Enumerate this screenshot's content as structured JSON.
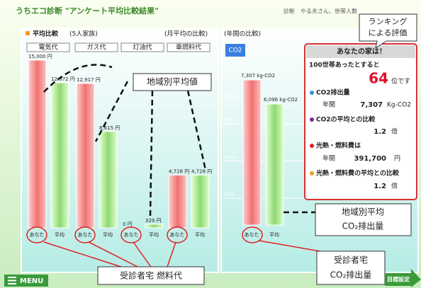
{
  "header": {
    "title": "うちエコ診断 \"アンケート平均比較結果\"",
    "user": "診断　やる夫さん、世帯人数"
  },
  "cost_panel": {
    "label": "平均比較",
    "household": "(5人家族)",
    "period": "(月平均の比較)",
    "categories": [
      "電気代",
      "ガス代",
      "灯油代",
      "車燃料代"
    ],
    "you_label": "あなた",
    "avg_label": "平均",
    "you": [
      15000,
      12917,
      0,
      4728
    ],
    "you_labels": [
      "15,000 円",
      "12,917 円",
      "0 円",
      "4,728 円"
    ],
    "avg": [
      12972,
      8615,
      329,
      4728
    ],
    "avg_labels": [
      "12,972 円",
      "8,615 円",
      "329 円",
      "4,728 円"
    ]
  },
  "co2_panel": {
    "period": "(年間の比較)",
    "tab": "CO2",
    "yticks": [
      {
        "value": 120,
        "label": "120%"
      },
      {
        "value": 100,
        "label": "100%"
      },
      {
        "value": 80,
        "label": "80%"
      },
      {
        "value": 50,
        "label": "50%"
      },
      {
        "value": 20,
        "label": "20%"
      }
    ],
    "you_label": "あなた",
    "avg_label": "平均",
    "you": 7307,
    "you_value_label": "7,307 kg-CO2",
    "avg": 6096,
    "avg_value_label": "6,096 kg-CO2"
  },
  "info_box": {
    "heading": "あなたの家は！",
    "rank_intro": "100世帯あったとすると",
    "rank": "64",
    "rank_unit": "位です",
    "co2_title": "CO2排出量",
    "co2_period": "年間",
    "co2_value": "7,307",
    "co2_unit": "Kg-CO2",
    "co2_ratio_title": "CO2の平均との比較",
    "co2_ratio": "1.2",
    "co2_ratio_unit": "倍",
    "cost_title": "光熱・燃料費は",
    "cost_period": "年間",
    "cost_value": "391,700",
    "cost_unit": "円",
    "cost_ratio_title": "光熱・燃料費の平均との比較",
    "cost_ratio": "1.2",
    "cost_ratio_unit": "倍"
  },
  "annotations": {
    "ranking": [
      "ランキング",
      "による評価"
    ],
    "regional_avg": "地域別平均値",
    "regional_co2": [
      "地域別平均",
      "CO₂排出量"
    ],
    "home_cost": "受診者宅 燃料代",
    "home_co2": [
      "受診者宅",
      "CO₂排出量"
    ]
  },
  "nav": {
    "menu": "MENU",
    "goal": "目標設定"
  }
}
